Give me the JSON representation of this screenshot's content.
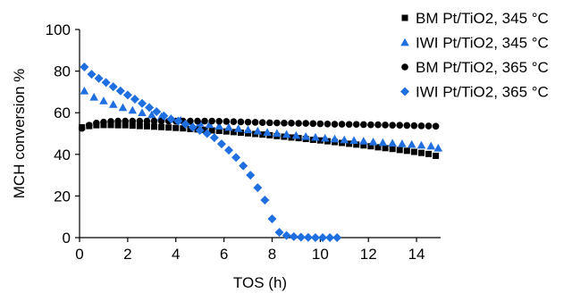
{
  "chart_data": {
    "type": "scatter",
    "xlabel": "TOS (h)",
    "ylabel": "MCH conversion %",
    "xlim": [
      0,
      15
    ],
    "ylim": [
      0,
      100
    ],
    "xticks": [
      0,
      2,
      4,
      6,
      8,
      10,
      12,
      14
    ],
    "yticks": [
      0,
      20,
      40,
      60,
      80,
      100
    ],
    "grid": false,
    "legend_position": "top-right",
    "series": [
      {
        "name": "BM Pt/TiO2, 345 °C",
        "marker": "square",
        "color": "#000000",
        "points": [
          [
            0.1,
            53.0
          ],
          [
            0.4,
            53.6
          ],
          [
            0.7,
            54.0
          ],
          [
            1.0,
            54.1
          ],
          [
            1.3,
            54.1
          ],
          [
            1.6,
            54.0
          ],
          [
            1.9,
            54.0
          ],
          [
            2.2,
            53.8
          ],
          [
            2.5,
            53.6
          ],
          [
            2.8,
            53.5
          ],
          [
            3.1,
            53.3
          ],
          [
            3.4,
            53.1
          ],
          [
            3.7,
            52.9
          ],
          [
            4.0,
            52.7
          ],
          [
            4.3,
            52.5
          ],
          [
            4.6,
            52.2
          ],
          [
            4.9,
            52.0
          ],
          [
            5.2,
            51.8
          ],
          [
            5.5,
            51.5
          ],
          [
            5.8,
            51.3
          ],
          [
            6.1,
            51.0
          ],
          [
            6.4,
            50.7
          ],
          [
            6.7,
            50.4
          ],
          [
            7.0,
            50.1
          ],
          [
            7.3,
            49.8
          ],
          [
            7.6,
            49.5
          ],
          [
            7.9,
            49.2
          ],
          [
            8.2,
            48.8
          ],
          [
            8.5,
            48.5
          ],
          [
            8.8,
            48.1
          ],
          [
            9.1,
            47.8
          ],
          [
            9.4,
            47.4
          ],
          [
            9.7,
            47.0
          ],
          [
            10.0,
            46.7
          ],
          [
            10.3,
            46.3
          ],
          [
            10.6,
            45.9
          ],
          [
            10.9,
            45.5
          ],
          [
            11.2,
            45.1
          ],
          [
            11.5,
            44.7
          ],
          [
            11.8,
            44.3
          ],
          [
            12.1,
            43.9
          ],
          [
            12.4,
            43.4
          ],
          [
            12.7,
            43.0
          ],
          [
            13.0,
            42.6
          ],
          [
            13.3,
            42.1
          ],
          [
            13.6,
            41.7
          ],
          [
            13.9,
            41.2
          ],
          [
            14.2,
            40.7
          ],
          [
            14.5,
            40.2
          ],
          [
            14.8,
            39.3
          ]
        ]
      },
      {
        "name": "IWI Pt/TiO2, 345 °C",
        "marker": "triangle",
        "color": "#1f6fe0",
        "points": [
          [
            0.2,
            70.5
          ],
          [
            0.6,
            67.5
          ],
          [
            1.0,
            65.7
          ],
          [
            1.4,
            64.0
          ],
          [
            1.8,
            62.5
          ],
          [
            2.2,
            61.2
          ],
          [
            2.6,
            60.0
          ],
          [
            3.0,
            59.0
          ],
          [
            3.4,
            58.1
          ],
          [
            3.8,
            57.2
          ],
          [
            4.2,
            56.4
          ],
          [
            4.6,
            55.7
          ],
          [
            5.0,
            55.0
          ],
          [
            5.4,
            54.3
          ],
          [
            5.8,
            53.6
          ],
          [
            6.2,
            53.0
          ],
          [
            6.6,
            52.4
          ],
          [
            7.0,
            51.8
          ],
          [
            7.4,
            51.2
          ],
          [
            7.8,
            50.6
          ],
          [
            8.2,
            50.1
          ],
          [
            8.6,
            49.6
          ],
          [
            9.0,
            49.1
          ],
          [
            9.4,
            48.6
          ],
          [
            9.8,
            48.2
          ],
          [
            10.2,
            47.8
          ],
          [
            10.6,
            47.4
          ],
          [
            11.0,
            47.0
          ],
          [
            11.4,
            46.7
          ],
          [
            11.8,
            46.4
          ],
          [
            12.2,
            46.0
          ],
          [
            12.6,
            45.7
          ],
          [
            13.0,
            45.4
          ],
          [
            13.4,
            45.1
          ],
          [
            13.8,
            44.8
          ],
          [
            14.2,
            44.4
          ],
          [
            14.6,
            44.0
          ],
          [
            14.9,
            43.0
          ]
        ]
      },
      {
        "name": "BM Pt/TiO2, 365 °C",
        "marker": "circle",
        "color": "#000000",
        "points": [
          [
            0.1,
            52.5
          ],
          [
            0.4,
            54.0
          ],
          [
            0.7,
            55.0
          ],
          [
            1.0,
            55.5
          ],
          [
            1.3,
            55.8
          ],
          [
            1.6,
            56.0
          ],
          [
            1.9,
            56.0
          ],
          [
            2.2,
            56.0
          ],
          [
            2.5,
            56.0
          ],
          [
            2.8,
            56.0
          ],
          [
            3.1,
            56.0
          ],
          [
            3.4,
            56.0
          ],
          [
            3.7,
            56.0
          ],
          [
            4.0,
            56.0
          ],
          [
            4.3,
            56.0
          ],
          [
            4.6,
            56.0
          ],
          [
            4.9,
            56.0
          ],
          [
            5.2,
            56.0
          ],
          [
            5.5,
            56.0
          ],
          [
            5.8,
            55.9
          ],
          [
            6.1,
            55.8
          ],
          [
            6.4,
            55.7
          ],
          [
            6.7,
            55.6
          ],
          [
            7.0,
            55.5
          ],
          [
            7.3,
            55.4
          ],
          [
            7.6,
            55.3
          ],
          [
            7.9,
            55.2
          ],
          [
            8.2,
            55.1
          ],
          [
            8.5,
            55.0
          ],
          [
            8.8,
            55.0
          ],
          [
            9.1,
            54.9
          ],
          [
            9.4,
            54.9
          ],
          [
            9.7,
            54.8
          ],
          [
            10.0,
            54.7
          ],
          [
            10.3,
            54.6
          ],
          [
            10.6,
            54.5
          ],
          [
            10.9,
            54.5
          ],
          [
            11.2,
            54.4
          ],
          [
            11.5,
            54.4
          ],
          [
            11.8,
            54.3
          ],
          [
            12.1,
            54.2
          ],
          [
            12.4,
            54.2
          ],
          [
            12.7,
            54.1
          ],
          [
            13.0,
            54.0
          ],
          [
            13.3,
            54.0
          ],
          [
            13.6,
            53.9
          ],
          [
            13.9,
            53.8
          ],
          [
            14.2,
            53.7
          ],
          [
            14.5,
            53.6
          ],
          [
            14.8,
            53.5
          ]
        ]
      },
      {
        "name": "IWI Pt/TiO2, 365 °C",
        "marker": "diamond",
        "color": "#1f6fe0",
        "points": [
          [
            0.2,
            82.0
          ],
          [
            0.5,
            78.5
          ],
          [
            0.8,
            76.5
          ],
          [
            1.1,
            74.5
          ],
          [
            1.4,
            72.5
          ],
          [
            1.7,
            70.5
          ],
          [
            2.0,
            68.5
          ],
          [
            2.3,
            66.5
          ],
          [
            2.6,
            64.5
          ],
          [
            2.9,
            62.5
          ],
          [
            3.2,
            60.5
          ],
          [
            3.5,
            58.5
          ],
          [
            3.8,
            57.0
          ],
          [
            4.1,
            56.0
          ],
          [
            4.4,
            54.5
          ],
          [
            4.7,
            53.0
          ],
          [
            5.0,
            51.5
          ],
          [
            5.3,
            50.0
          ],
          [
            5.6,
            48.0
          ],
          [
            5.9,
            45.0
          ],
          [
            6.2,
            42.0
          ],
          [
            6.5,
            38.5
          ],
          [
            6.8,
            34.5
          ],
          [
            7.1,
            30.0
          ],
          [
            7.4,
            24.0
          ],
          [
            7.7,
            18.0
          ],
          [
            8.0,
            9.0
          ],
          [
            8.3,
            2.5
          ],
          [
            8.6,
            1.0
          ],
          [
            8.9,
            0.5
          ],
          [
            9.2,
            0.2
          ],
          [
            9.5,
            0.1
          ],
          [
            9.8,
            0.0
          ],
          [
            10.1,
            0.0
          ],
          [
            10.4,
            0.0
          ],
          [
            10.7,
            0.0
          ]
        ]
      }
    ]
  }
}
